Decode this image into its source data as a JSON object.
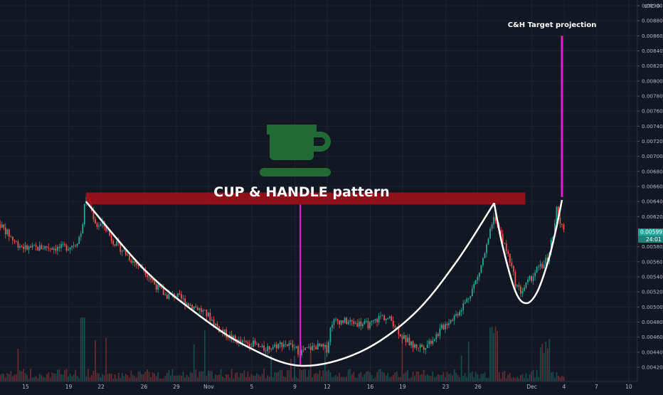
{
  "chart_data": {
    "type": "candlestick",
    "currency_label": "BTC",
    "title_annotation": "CUP & HANDLE pattern",
    "target_annotation": "C&H Target projection",
    "price_tag": "0.005993",
    "countdown": "24:01",
    "y_ticks": [
      "0.00420",
      "0.00440",
      "0.00460",
      "0.00480",
      "0.00500",
      "0.00520",
      "0.00540",
      "0.00560",
      "0.00580",
      "0.00620",
      "0.00640",
      "0.00660",
      "0.00680",
      "0.00700",
      "0.00720",
      "0.00740",
      "0.00760",
      "0.00780",
      "0.00800",
      "0.00820",
      "0.00840",
      "0.00860",
      "0.00880",
      "0.00900"
    ],
    "y_tick_values": [
      0.0042,
      0.0044,
      0.0046,
      0.0048,
      0.005,
      0.0052,
      0.0054,
      0.0056,
      0.0058,
      0.0062,
      0.0064,
      0.0066,
      0.0068,
      0.007,
      0.0072,
      0.0074,
      0.0076,
      0.0078,
      0.008,
      0.0082,
      0.0084,
      0.0086,
      0.0088,
      0.009
    ],
    "ylim": [
      0.00408,
      0.00906
    ],
    "x_ticks": [
      {
        "label": "15",
        "day": 15
      },
      {
        "label": "19",
        "day": 19
      },
      {
        "label": "22",
        "day": 22
      },
      {
        "label": "26",
        "day": 26
      },
      {
        "label": "29",
        "day": 29
      },
      {
        "label": "Nov",
        "day": 32
      },
      {
        "label": "5",
        "day": 36
      },
      {
        "label": "9",
        "day": 40
      },
      {
        "label": "12",
        "day": 43
      },
      {
        "label": "16",
        "day": 47
      },
      {
        "label": "19",
        "day": 50
      },
      {
        "label": "23",
        "day": 54
      },
      {
        "label": "26",
        "day": 57
      },
      {
        "label": "Dec",
        "day": 62
      },
      {
        "label": "4",
        "day": 65
      },
      {
        "label": "7",
        "day": 68
      },
      {
        "label": "10",
        "day": 71
      }
    ],
    "resistance_zone": {
      "from_day": 20.6,
      "to_day": 61.4,
      "low": 0.00636,
      "high": 0.00652
    },
    "cup_depth_line": {
      "day": 40.5,
      "from": 0.00422,
      "to": 0.00636
    },
    "target_line": {
      "day": 64.8,
      "from": 0.00646,
      "to": 0.0086
    },
    "cup_curve": [
      [
        20.6,
        0.0064
      ],
      [
        26,
        0.0055
      ],
      [
        31,
        0.0049
      ],
      [
        35.5,
        0.00448
      ],
      [
        40.5,
        0.00422
      ],
      [
        46,
        0.0044
      ],
      [
        51,
        0.0049
      ],
      [
        55,
        0.0056
      ],
      [
        58.5,
        0.00638
      ]
    ],
    "handle_curve": [
      [
        58.5,
        0.00638
      ],
      [
        59.3,
        0.0058
      ],
      [
        60.5,
        0.0052
      ],
      [
        61.5,
        0.00505
      ],
      [
        62.5,
        0.0052
      ],
      [
        63.5,
        0.0056
      ],
      [
        64.2,
        0.006
      ],
      [
        64.8,
        0.00642
      ]
    ],
    "colors": {
      "background": "#131722",
      "up": "#26a69a",
      "down": "#ef5350",
      "zone": "#a00f1a",
      "magenta": "#e81bd3",
      "curve": "#ffffff",
      "axis_text": "#b2b5be",
      "price_tag": "#26a69a",
      "cup_icon": "#1f6b33"
    },
    "icon": "cup-icon",
    "anchors": [
      [
        10.0,
        0.0064
      ],
      [
        10.6,
        0.00632
      ],
      [
        11.3,
        0.00628
      ],
      [
        12,
        0.00622
      ],
      [
        12.6,
        0.0061
      ],
      [
        13.2,
        0.006
      ],
      [
        13.8,
        0.0059
      ],
      [
        14.4,
        0.00582
      ],
      [
        15.0,
        0.00578
      ],
      [
        16,
        0.00578
      ],
      [
        17,
        0.0058
      ],
      [
        18,
        0.00578
      ],
      [
        19,
        0.0058
      ],
      [
        19.7,
        0.00585
      ],
      [
        20.2,
        0.006
      ],
      [
        20.6,
        0.0065
      ],
      [
        21.0,
        0.00632
      ],
      [
        21.6,
        0.00608
      ],
      [
        22.2,
        0.0061
      ],
      [
        23,
        0.0059
      ],
      [
        24,
        0.00575
      ],
      [
        25,
        0.0056
      ],
      [
        26,
        0.0055
      ],
      [
        27,
        0.0053
      ],
      [
        28,
        0.00515
      ],
      [
        29,
        0.00515
      ],
      [
        30,
        0.00505
      ],
      [
        31,
        0.00498
      ],
      [
        32,
        0.00488
      ],
      [
        33,
        0.0047
      ],
      [
        34,
        0.0046
      ],
      [
        35,
        0.00452
      ],
      [
        36,
        0.00452
      ],
      [
        37,
        0.00444
      ],
      [
        38,
        0.00448
      ],
      [
        39,
        0.00452
      ],
      [
        40,
        0.00445
      ],
      [
        40.5,
        0.0044
      ],
      [
        41,
        0.00443
      ],
      [
        42,
        0.00448
      ],
      [
        43,
        0.00444
      ],
      [
        43.4,
        0.0048
      ],
      [
        44,
        0.00482
      ],
      [
        45,
        0.0048
      ],
      [
        46,
        0.00478
      ],
      [
        47,
        0.00476
      ],
      [
        48,
        0.00488
      ],
      [
        49,
        0.00482
      ],
      [
        50,
        0.0046
      ],
      [
        51,
        0.00448
      ],
      [
        52,
        0.00448
      ],
      [
        53,
        0.0046
      ],
      [
        54,
        0.00478
      ],
      [
        55,
        0.0049
      ],
      [
        56,
        0.0051
      ],
      [
        57,
        0.0054
      ],
      [
        58,
        0.0059
      ],
      [
        58.5,
        0.00625
      ],
      [
        59,
        0.006
      ],
      [
        59.5,
        0.0058
      ],
      [
        60,
        0.0056
      ],
      [
        60.5,
        0.0053
      ],
      [
        61,
        0.0052
      ],
      [
        61.5,
        0.0053
      ],
      [
        62,
        0.0054
      ],
      [
        62.5,
        0.0055
      ],
      [
        63,
        0.00555
      ],
      [
        63.5,
        0.00565
      ],
      [
        64,
        0.006
      ],
      [
        64.3,
        0.0063
      ],
      [
        64.6,
        0.0061
      ],
      [
        65,
        0.006
      ]
    ]
  }
}
